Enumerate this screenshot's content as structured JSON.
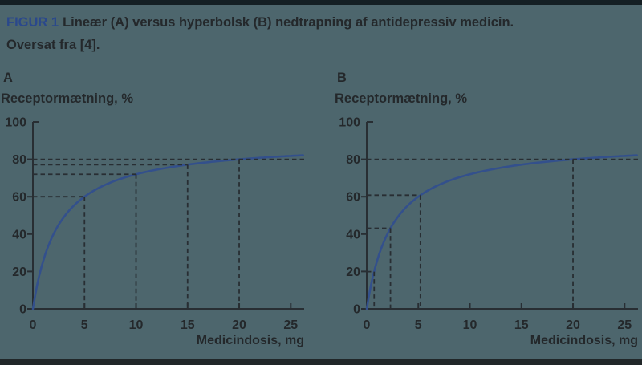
{
  "colors": {
    "background": "#4d666d",
    "top_bar": "#141f24",
    "bottom_bar": "#212729",
    "text": "#24282b",
    "figure_label_blue": "#2a488c",
    "curve_blue": "#33508c",
    "axis_and_guides": "#282e33"
  },
  "header": {
    "figure_label": "FIGUR 1",
    "caption": "Lineær (A) versus hyperbolsk (B) nedtrapning af antidepressiv medicin.",
    "caption_line2": "Oversat fra [4]."
  },
  "chart_data": [
    {
      "panel_label": "A",
      "type": "line",
      "taper_mode": "linear dose reduction",
      "ylabel": "Receptormætning, %",
      "xlabel": "Medicindosis, mg",
      "x_ticks": [
        0,
        5,
        10,
        15,
        20,
        25
      ],
      "y_ticks": [
        0,
        20,
        40,
        60,
        80,
        100
      ],
      "xlim": [
        0,
        26.3
      ],
      "ylim": [
        0,
        100
      ],
      "grid": false,
      "curve": {
        "formula": "y = 90·x / (x + 2.5)",
        "a": 90,
        "k": 2.5
      },
      "guides": [
        {
          "dose": 5,
          "saturation": 60
        },
        {
          "dose": 10,
          "saturation": 72
        },
        {
          "dose": 15,
          "saturation": 77.1
        },
        {
          "dose": 20,
          "saturation": 80,
          "extend_full_width": true
        }
      ]
    },
    {
      "panel_label": "B",
      "type": "line",
      "taper_mode": "hyperbolic dose reduction",
      "ylabel": "Receptormætning, %",
      "xlabel": "Medicindosis, mg",
      "x_ticks": [
        0,
        5,
        10,
        15,
        20,
        25
      ],
      "y_ticks": [
        0,
        20,
        40,
        60,
        80,
        100
      ],
      "xlim": [
        0,
        26.3
      ],
      "ylim": [
        0,
        100
      ],
      "grid": false,
      "curve": {
        "formula": "y = 90·x / (x + 2.5)",
        "a": 90,
        "k": 2.5
      },
      "guides": [
        {
          "dose": 0.72,
          "saturation": 19.9
        },
        {
          "dose": 2.3,
          "saturation": 43.1
        },
        {
          "dose": 5.2,
          "saturation": 60.8
        },
        {
          "dose": 20,
          "saturation": 80,
          "extend_full_width": true
        }
      ]
    }
  ]
}
